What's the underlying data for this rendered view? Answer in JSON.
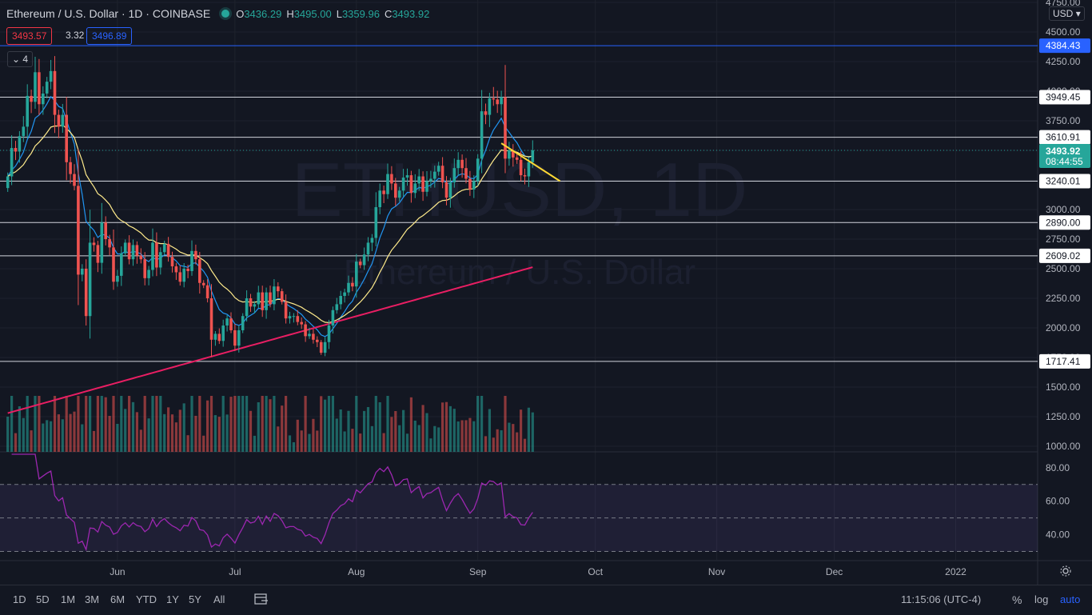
{
  "header": {
    "symbol": "Ethereum / U.S. Dollar · 1D · COINBASE",
    "open_label": "O",
    "open": "3436.29",
    "high_label": "H",
    "high": "3495.00",
    "low_label": "L",
    "low": "3359.96",
    "close_label": "C",
    "close": "3493.92",
    "sell_price": "3493.57",
    "spread": "3.32",
    "buy_price": "3496.89",
    "indicator_count": "4",
    "currency": "USD",
    "status_color": "#26a69a"
  },
  "watermark": {
    "ticker": "ETHUSD, 1D",
    "name": "Ethereum / U.S. Dollar"
  },
  "toolbar": {
    "timeframes": [
      "1D",
      "5D",
      "1M",
      "3M",
      "6M",
      "YTD",
      "1Y",
      "5Y",
      "All"
    ],
    "clock": "11:15:06 (UTC-4)",
    "percent_label": "%",
    "log_label": "log",
    "auto_label": "auto"
  },
  "colors": {
    "bull": "#26a69a",
    "bear": "#ef5350",
    "ema_short": "#2196f3",
    "ema_mid": "#ffeb8c",
    "ma_long": "#e91e63",
    "rsi": "#9c27b0",
    "trendline": "#fdd835",
    "background": "#131722"
  },
  "chart_data": {
    "type": "candlestick",
    "symbol": "ETHUSD",
    "interval": "1D",
    "exchange": "COINBASE",
    "y_axis": {
      "min": 1000,
      "max": 4750,
      "ticks": [
        1000,
        1250,
        1500,
        1750,
        2000,
        2250,
        2500,
        2750,
        3000,
        3250,
        3500,
        3750,
        4000,
        4250,
        4500,
        4750
      ],
      "tick_labels": [
        "1000.00",
        "1250.00",
        "1500.00",
        "1750.00",
        "2000.00",
        "2250.00",
        "2500.00",
        "2750.00",
        "3000.00",
        "3250.00",
        "3500.00",
        "3750.00",
        "4000.00",
        "4250.00",
        "4500.00",
        "4750.00"
      ]
    },
    "x_axis": {
      "labels": [
        "Jun",
        "Jul",
        "Aug",
        "Sep",
        "Oct",
        "Nov",
        "Dec",
        "2022"
      ],
      "label_dates": [
        "2021-06-01",
        "2021-07-01",
        "2021-08-01",
        "2021-09-01",
        "2021-10-01",
        "2021-11-01",
        "2021-12-01",
        "2022-01-01"
      ]
    },
    "first_date": "2021-05-04",
    "last_date": "2021-09-16",
    "last_price": "3493.92",
    "countdown": "08:44:55",
    "last_price_color": "#26a69a",
    "high_line": {
      "value": 4384.43,
      "label": "4384.43",
      "color": "#2962ff"
    },
    "horizontal_levels": [
      {
        "value": 3949.45,
        "label": "3949.45"
      },
      {
        "value": 3610.91,
        "label": "3610.91"
      },
      {
        "value": 3240.01,
        "label": "3240.01"
      },
      {
        "value": 2890.0,
        "label": "2890.00"
      },
      {
        "value": 2609.02,
        "label": "2609.02"
      },
      {
        "value": 1717.41,
        "label": "1717.41"
      }
    ],
    "trendline": {
      "points": [
        [
          "2021-09-07",
          3560
        ],
        [
          "2021-09-22",
          3240
        ]
      ]
    },
    "closes": [
      3280,
      3520,
      3490,
      3620,
      3700,
      3960,
      3910,
      4160,
      3890,
      3980,
      4080,
      4170,
      3800,
      3700,
      3800,
      3400,
      3300,
      3200,
      2450,
      2500,
      2100,
      2720,
      2700,
      2550,
      2890,
      2750,
      2680,
      2390,
      2440,
      2630,
      2720,
      2580,
      2700,
      2610,
      2580,
      2420,
      2490,
      2720,
      2510,
      2640,
      2710,
      2600,
      2520,
      2470,
      2390,
      2500,
      2480,
      2650,
      2580,
      2380,
      2360,
      2250,
      1900,
      1950,
      1890,
      2020,
      2080,
      1980,
      1850,
      1980,
      2100,
      2250,
      2180,
      2200,
      2300,
      2150,
      2300,
      2200,
      2350,
      2310,
      2220,
      2080,
      2100,
      2100,
      2050,
      2030,
      1930,
      1950,
      1900,
      1880,
      1790,
      1880,
      2020,
      2150,
      2200,
      2270,
      2300,
      2380,
      2350,
      2560,
      2530,
      2620,
      2720,
      2760,
      3020,
      3160,
      3130,
      3300,
      3220,
      3100,
      3160,
      3270,
      3290,
      3140,
      3220,
      3280,
      3150,
      3240,
      3260,
      3320,
      3370,
      3230,
      3100,
      3230,
      3350,
      3420,
      3350,
      3260,
      3170,
      3240,
      3430,
      3830,
      3800,
      3940,
      3930,
      3890,
      3950,
      3430,
      3500,
      3440,
      3420,
      3290,
      3280,
      3400,
      3500
    ],
    "rsi": {
      "period": 14,
      "y_range": [
        25,
        88
      ],
      "ticks": [
        40,
        60,
        80
      ],
      "tick_labels": [
        "40.00",
        "60.00",
        "80.00"
      ],
      "bands": [
        70,
        50,
        30
      ]
    }
  }
}
